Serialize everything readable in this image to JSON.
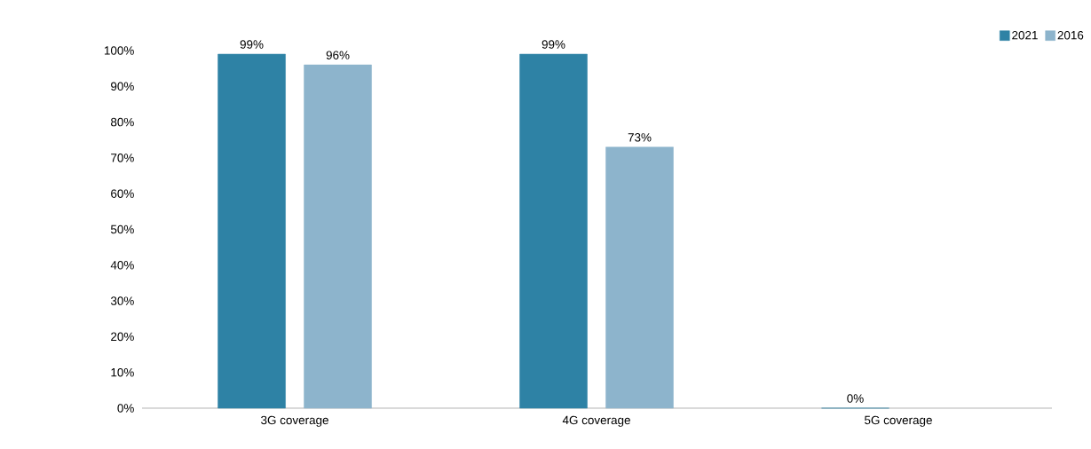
{
  "chart_data": {
    "type": "bar",
    "categories": [
      "3G coverage",
      "4G coverage",
      "5G coverage"
    ],
    "series": [
      {
        "name": "2021",
        "color": "#2e82a5",
        "values": [
          99,
          99,
          0
        ],
        "value_labels": [
          "99%",
          "99%",
          "0%"
        ]
      },
      {
        "name": "2016",
        "color": "#8db4cc",
        "values": [
          96,
          73,
          null
        ],
        "value_labels": [
          "96%",
          "73%",
          null
        ]
      }
    ],
    "ylim": [
      0,
      100
    ],
    "yticks": [
      {
        "value": 0,
        "label": "0%"
      },
      {
        "value": 10,
        "label": "10%"
      },
      {
        "value": 20,
        "label": "20%"
      },
      {
        "value": 30,
        "label": "30%"
      },
      {
        "value": 40,
        "label": "40%"
      },
      {
        "value": 50,
        "label": "50%"
      },
      {
        "value": 60,
        "label": "60%"
      },
      {
        "value": 70,
        "label": "70%"
      },
      {
        "value": 80,
        "label": "80%"
      },
      {
        "value": 90,
        "label": "90%"
      },
      {
        "value": 100,
        "label": "100%"
      }
    ],
    "grid": false,
    "legend": "top right"
  }
}
